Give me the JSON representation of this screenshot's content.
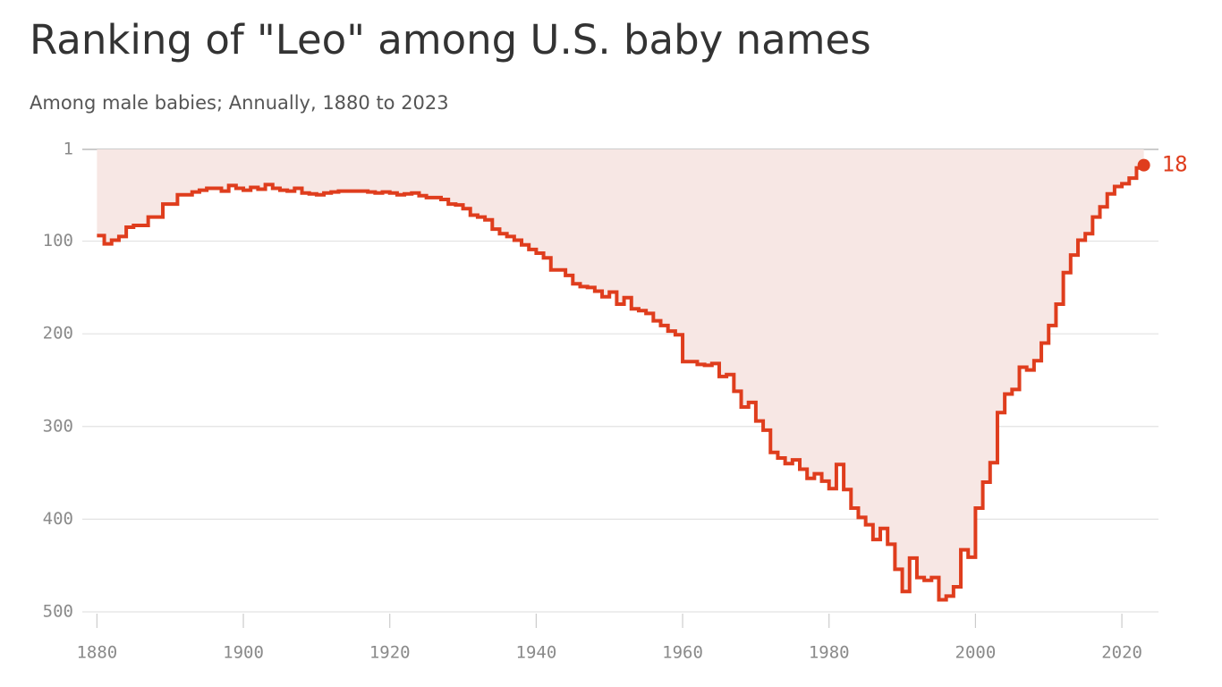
{
  "chart_data": {
    "type": "step_area",
    "title": "Ranking of \"Leo\" among U.S. baby names",
    "subtitle": "Among male babies; Annually, 1880 to 2023",
    "x": [
      1880,
      1881,
      1882,
      1883,
      1884,
      1885,
      1886,
      1887,
      1888,
      1889,
      1890,
      1891,
      1892,
      1893,
      1894,
      1895,
      1896,
      1897,
      1898,
      1899,
      1900,
      1901,
      1902,
      1903,
      1904,
      1905,
      1906,
      1907,
      1908,
      1909,
      1910,
      1911,
      1912,
      1913,
      1914,
      1915,
      1916,
      1917,
      1918,
      1919,
      1920,
      1921,
      1922,
      1923,
      1924,
      1925,
      1926,
      1927,
      1928,
      1929,
      1930,
      1931,
      1932,
      1933,
      1934,
      1935,
      1936,
      1937,
      1938,
      1939,
      1940,
      1941,
      1942,
      1943,
      1944,
      1945,
      1946,
      1947,
      1948,
      1949,
      1950,
      1951,
      1952,
      1953,
      1954,
      1955,
      1956,
      1957,
      1958,
      1959,
      1960,
      1961,
      1962,
      1963,
      1964,
      1965,
      1966,
      1967,
      1968,
      1969,
      1970,
      1971,
      1972,
      1973,
      1974,
      1975,
      1976,
      1977,
      1978,
      1979,
      1980,
      1981,
      1982,
      1983,
      1984,
      1985,
      1986,
      1987,
      1988,
      1989,
      1990,
      1991,
      1992,
      1993,
      1994,
      1995,
      1996,
      1997,
      1998,
      1999,
      2000,
      2001,
      2002,
      2003,
      2004,
      2005,
      2006,
      2007,
      2008,
      2009,
      2010,
      2011,
      2012,
      2013,
      2014,
      2015,
      2016,
      2017,
      2018,
      2019,
      2020,
      2021,
      2022,
      2023
    ],
    "values": [
      94,
      103,
      99,
      95,
      85,
      83,
      83,
      74,
      74,
      60,
      60,
      50,
      50,
      47,
      45,
      43,
      43,
      46,
      40,
      43,
      45,
      42,
      44,
      39,
      43,
      45,
      46,
      43,
      48,
      49,
      50,
      48,
      47,
      46,
      46,
      46,
      46,
      47,
      48,
      47,
      48,
      50,
      49,
      48,
      51,
      53,
      53,
      55,
      60,
      61,
      65,
      72,
      74,
      77,
      87,
      92,
      95,
      99,
      104,
      109,
      113,
      118,
      131,
      131,
      137,
      146,
      149,
      150,
      154,
      160,
      155,
      168,
      161,
      173,
      175,
      178,
      186,
      191,
      197,
      201,
      230,
      230,
      233,
      234,
      232,
      246,
      244,
      262,
      279,
      274,
      294,
      304,
      328,
      334,
      340,
      336,
      346,
      356,
      351,
      359,
      367,
      341,
      368,
      388,
      398,
      406,
      422,
      410,
      427,
      454,
      478,
      442,
      463,
      466,
      463,
      487,
      483,
      473,
      433,
      441,
      388,
      360,
      339,
      285,
      265,
      260,
      236,
      239,
      229,
      210,
      191,
      168,
      134,
      115,
      99,
      92,
      74,
      63,
      49,
      41,
      38,
      32,
      21,
      18
    ],
    "color": "#df3d1d",
    "fill_color": "#f7e7e4",
    "xlim": [
      1878,
      2025
    ],
    "xticks": [
      1880,
      1900,
      1920,
      1940,
      1960,
      1980,
      2000,
      2020
    ],
    "ylim": [
      1,
      500
    ],
    "yticks": [
      1,
      100,
      200,
      300,
      400,
      500
    ],
    "inverted": true,
    "grid": true,
    "end_label": true
  }
}
